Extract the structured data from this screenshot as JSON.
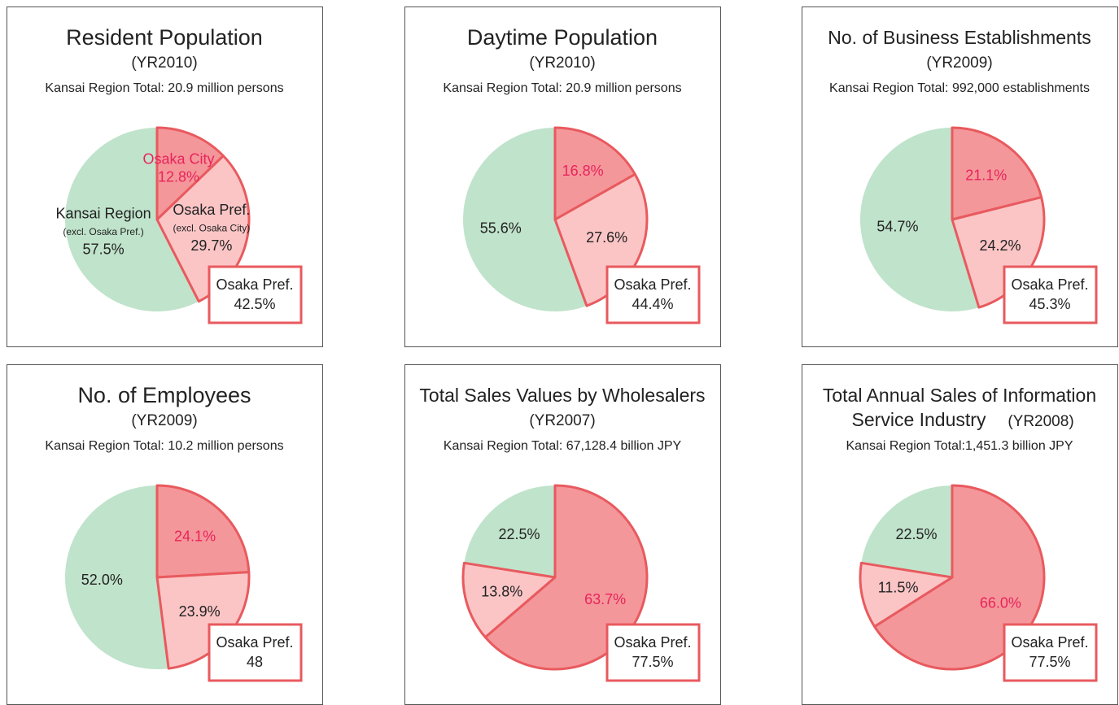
{
  "chart_data": [
    {
      "type": "pie",
      "title": "Resident Population",
      "subtitle": "(YR2010)",
      "total": "Kansai Region Total: 20.9 million persons",
      "categories": [
        "Osaka City",
        "Osaka Pref.",
        "Kansai Region"
      ],
      "category_notes": [
        null,
        "(excl. Osaka City)",
        "(excl. Osaka Pref.)"
      ],
      "values": [
        12.8,
        29.7,
        57.5
      ],
      "value_labels": [
        "12.8%",
        "29.7%",
        "57.5%"
      ],
      "colors": [
        "#f4979b",
        "#fbc5c6",
        "#c0e3cb"
      ],
      "annotation": {
        "label": "Osaka Pref.",
        "value": 42.5,
        "value_label": "42.5%"
      }
    },
    {
      "type": "pie",
      "title": "Daytime Population",
      "subtitle": "(YR2010)",
      "total": "Kansai Region Total: 20.9 million persons",
      "values": [
        16.8,
        27.6,
        55.6
      ],
      "value_labels": [
        "16.8%",
        "27.6%",
        "55.6%"
      ],
      "colors": [
        "#f4979b",
        "#fbc5c6",
        "#c0e3cb"
      ],
      "annotation": {
        "label": "Osaka Pref.",
        "value": 44.4,
        "value_label": "44.4%"
      }
    },
    {
      "type": "pie",
      "title": "No. of Business Establishments",
      "subtitle": "(YR2009)",
      "total": "Kansai Region Total: 992,000 establishments",
      "values": [
        21.1,
        24.2,
        54.7
      ],
      "value_labels": [
        "21.1%",
        "24.2%",
        "54.7%"
      ],
      "colors": [
        "#f4979b",
        "#fbc5c6",
        "#c0e3cb"
      ],
      "annotation": {
        "label": "Osaka Pref.",
        "value": 45.3,
        "value_label": "45.3%"
      }
    },
    {
      "type": "pie",
      "title": "No. of Employees",
      "subtitle": "(YR2009)",
      "total": "Kansai Region Total: 10.2 million persons",
      "values": [
        24.1,
        23.9,
        52.0
      ],
      "value_labels": [
        "24.1%",
        "23.9%",
        "52.0%"
      ],
      "colors": [
        "#f4979b",
        "#fbc5c6",
        "#c0e3cb"
      ],
      "annotation": {
        "label": "Osaka Pref.",
        "value": 48
      }
    },
    {
      "type": "pie",
      "title": "Total Sales Values by Wholesalers",
      "subtitle": "(YR2007)",
      "total": "Kansai Region Total: 67,128.4 billion JPY",
      "values": [
        63.7,
        13.8,
        22.5
      ],
      "value_labels": [
        "63.7%",
        "13.8%",
        "22.5%"
      ],
      "colors": [
        "#f4979b",
        "#fbc5c6",
        "#c0e3cb"
      ],
      "annotation": {
        "label": "Osaka Pref.",
        "value": 77.5,
        "value_label": "77.5%"
      }
    },
    {
      "type": "pie",
      "title": [
        "Total Annual Sales of Information",
        "Service Industry"
      ],
      "subtitle": "(YR2008)",
      "total": "Kansai Region Total:1,451.3 billion JPY",
      "values": [
        66.0,
        11.5,
        22.5
      ],
      "value_labels": [
        "66.0%",
        "11.5%",
        "22.5%"
      ],
      "colors": [
        "#f4979b",
        "#fbc5c6",
        "#c0e3cb"
      ],
      "annotation": {
        "label": "Osaka Pref.",
        "value": 77.5,
        "value_label": "77.5%"
      }
    }
  ]
}
